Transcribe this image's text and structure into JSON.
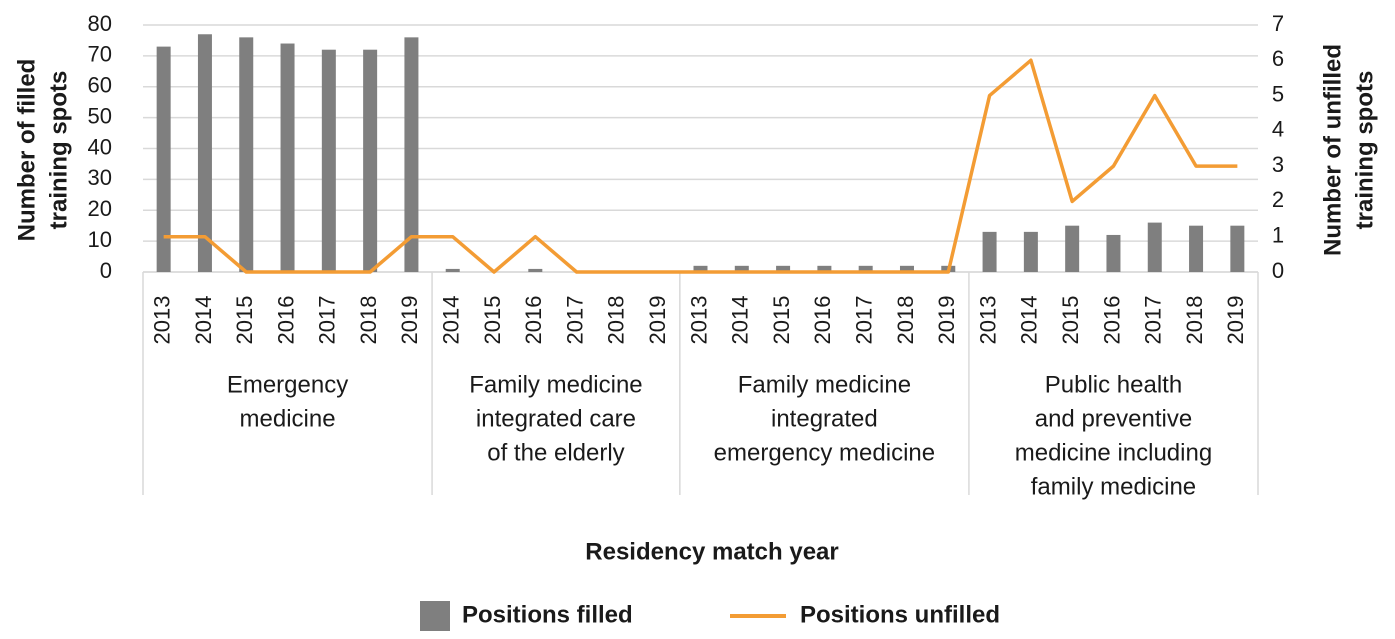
{
  "chart_data": {
    "type": "bar-line",
    "x_label": "Residency match year",
    "y_label": [
      "Number of filled",
      "training spots"
    ],
    "y2_label": [
      "Number of unfilled",
      "training spots"
    ],
    "groups": [
      {
        "label": [
          "Emergency",
          "medicine"
        ],
        "categories": [
          "2013",
          "2014",
          "2015",
          "2016",
          "2017",
          "2018",
          "2019"
        ]
      },
      {
        "label": [
          "Family medicine",
          "integrated care",
          "of the elderly"
        ],
        "categories": [
          "2014",
          "2015",
          "2016",
          "2017",
          "2018",
          "2019"
        ]
      },
      {
        "label": [
          "Family medicine",
          "integrated",
          "emergency medicine"
        ],
        "categories": [
          "2013",
          "2014",
          "2015",
          "2016",
          "2017",
          "2018",
          "2019"
        ]
      },
      {
        "label": [
          "Public health",
          "and preventive",
          "medicine including",
          "family medicine"
        ],
        "categories": [
          "2013",
          "2014",
          "2015",
          "2016",
          "2017",
          "2018",
          "2019"
        ]
      }
    ],
    "series": [
      {
        "name": "Positions filled",
        "type": "bar",
        "color": "#7f7f7f",
        "values": [
          73,
          77,
          76,
          74,
          72,
          72,
          76,
          1,
          0,
          1,
          0,
          0,
          0,
          2,
          2,
          2,
          2,
          2,
          2,
          2,
          13,
          13,
          15,
          12,
          16,
          15,
          15
        ]
      },
      {
        "name": "Positions unfilled",
        "type": "line",
        "axis": "y2",
        "color": "#f39c34",
        "values": [
          1,
          1,
          0,
          0,
          0,
          0,
          1,
          1,
          0,
          1,
          0,
          0,
          0,
          0,
          0,
          0,
          0,
          0,
          0,
          0,
          5,
          6,
          2,
          3,
          5,
          3,
          3
        ]
      }
    ],
    "ylim": [
      0,
      80
    ],
    "yticks": [
      0,
      10,
      20,
      30,
      40,
      50,
      60,
      70,
      80
    ],
    "y2lim": [
      0,
      7
    ],
    "y2ticks": [
      0,
      1,
      2,
      3,
      4,
      5,
      6,
      7
    ],
    "grid": true
  }
}
